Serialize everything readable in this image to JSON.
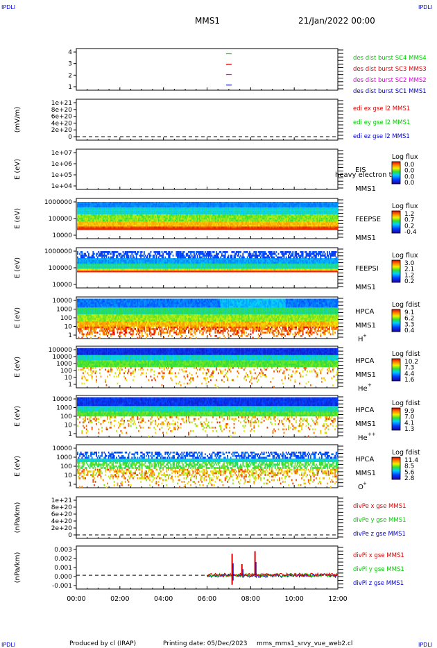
{
  "header": {
    "corner_left_top": "IPDLI",
    "corner_right_top": "IPDLI",
    "corner_left_bottom": "IPDLI",
    "corner_right_bottom": "IPDLI",
    "mission": "MMS1",
    "date_time": "21/Jan/2022 00:00"
  },
  "footer": {
    "produced_by": "Produced by  cl (IRAP)",
    "printing_date": "Printing date: 05/Dec/2023",
    "filename": "mms_mms1_srvy_vue_web2.cl"
  },
  "colors": {
    "red": "#e00000",
    "magenta": "#e000e0",
    "green": "#00cc00",
    "blue": "#0000cc"
  },
  "chart_data": [
    {
      "id": "burst",
      "type": "scatter",
      "yticks": [
        "1",
        "2",
        "3",
        "4"
      ],
      "ylim": [
        0.5,
        4.5
      ],
      "series": [
        {
          "name": "des dist burst SC1 MMS1",
          "color": "#0000cc",
          "y": 1,
          "x": 7.0
        },
        {
          "name": "des dist burst SC2 MMS2",
          "color": "#e000e0",
          "y": 2,
          "x": 7.0
        },
        {
          "name": "des dist burst SC3 MMS3",
          "color": "#e00000",
          "y": 3,
          "x": 7.0
        },
        {
          "name": "des dist burst SC4 MMS4",
          "color": "#00cc00",
          "y": 4,
          "x": 7.0
        }
      ]
    },
    {
      "id": "efield",
      "type": "line",
      "ylabel": "(mV/m)",
      "yticks": [
        "0",
        "2e+20",
        "4e+20",
        "6e+20",
        "8e+20",
        "1e+21"
      ],
      "series": [
        {
          "name": "edi ex gse l2 MMS1",
          "color": "#e00000"
        },
        {
          "name": "edi ey gse l2 MMS1",
          "color": "#00cc00"
        },
        {
          "name": "edi ez gse l2 MMS1",
          "color": "#0000cc"
        }
      ]
    },
    {
      "id": "eis",
      "type": "heatmap",
      "ylabel": "E (eV)",
      "yticks": [
        "1e+04",
        "1e+05",
        "1e+06",
        "1e+07"
      ],
      "name": "EIS",
      "sc": "MMS1",
      "overlay": "heavy electron to",
      "cbar_title": "Log flux",
      "cbar_ticks": [
        "0.0",
        "0.0",
        "0.0",
        "0.0"
      ]
    },
    {
      "id": "feepse",
      "type": "heatmap",
      "ylabel": "E (eV)",
      "yticks": [
        "10000",
        "100000",
        "1000000"
      ],
      "name": "FEEPSE",
      "sc": "MMS1",
      "cbar_title": "Log flux",
      "cbar_ticks": [
        "1.2",
        "0.7",
        "0.2",
        "-0.4"
      ]
    },
    {
      "id": "feepsi",
      "type": "heatmap",
      "ylabel": "E (eV)",
      "yticks": [
        "10000",
        "100000",
        "1000000"
      ],
      "name": "FEEPSI",
      "sc": "MMS1",
      "cbar_title": "Log flux",
      "cbar_ticks": [
        "3.0",
        "2.1",
        "1.2",
        "0.2"
      ]
    },
    {
      "id": "hpca_h",
      "type": "heatmap",
      "ylabel": "E (eV)",
      "yticks": [
        "1",
        "10",
        "100",
        "1000",
        "10000"
      ],
      "name": "HPCA",
      "sc": "MMS1",
      "species": "H",
      "charge": "+",
      "cbar_title": "Log fdist",
      "cbar_ticks": [
        "9.1",
        "6.2",
        "3.3",
        "0.4"
      ]
    },
    {
      "id": "hpca_he",
      "type": "heatmap",
      "ylabel": "E (eV)",
      "yticks": [
        "1",
        "10",
        "100",
        "1000",
        "10000",
        "100000"
      ],
      "name": "HPCA",
      "sc": "MMS1",
      "species": "He",
      "charge": "+",
      "cbar_title": "Log fdist",
      "cbar_ticks": [
        "10.2",
        "7.3",
        "4.4",
        "1.6"
      ]
    },
    {
      "id": "hpca_hepp",
      "type": "heatmap",
      "ylabel": "E (eV)",
      "yticks": [
        "1",
        "10",
        "100",
        "1000",
        "10000"
      ],
      "name": "HPCA",
      "sc": "MMS1",
      "species": "He",
      "charge": "++",
      "cbar_title": "Log fdist",
      "cbar_ticks": [
        "9.9",
        "7.0",
        "4.1",
        "1.3"
      ]
    },
    {
      "id": "hpca_o",
      "type": "heatmap",
      "ylabel": "E (eV)",
      "yticks": [
        "1",
        "10",
        "100",
        "1000",
        "10000"
      ],
      "name": "HPCA",
      "sc": "MMS1",
      "species": "O",
      "charge": "+",
      "cbar_title": "Log fdist",
      "cbar_ticks": [
        "11.4",
        "8.5",
        "5.6",
        "2.8"
      ]
    },
    {
      "id": "divpe",
      "type": "line",
      "ylabel": "(nPa/km)",
      "yticks": [
        "0",
        "2e+20",
        "4e+20",
        "6e+20",
        "8e+20",
        "1e+21"
      ],
      "series": [
        {
          "name": "divPe x gse MMS1",
          "color": "#e00000"
        },
        {
          "name": "divPe y gse MMS1",
          "color": "#00cc00"
        },
        {
          "name": "divPe z gse MMS1",
          "color": "#0000cc"
        }
      ]
    },
    {
      "id": "divpi",
      "type": "line",
      "ylabel": "(nPa/km)",
      "yticks": [
        "-0.001",
        "0.000",
        "0.001",
        "0.002",
        "0.003"
      ],
      "ylim": [
        -0.0016,
        0.0034
      ],
      "data_start_hour": 6.0,
      "spikes": [
        {
          "x": 7.15,
          "y": 0.0025
        },
        {
          "x": 7.6,
          "y": 0.0013
        },
        {
          "x": 8.2,
          "y": 0.0028
        },
        {
          "x": 7.15,
          "y": -0.0011
        }
      ],
      "series": [
        {
          "name": "divPi x gse MMS1",
          "color": "#e00000"
        },
        {
          "name": "divPi y gse MMS1",
          "color": "#00cc00"
        },
        {
          "name": "divPi z gse MMS1",
          "color": "#0000cc"
        }
      ]
    }
  ],
  "xaxis": {
    "ticks": [
      "00:00",
      "02:00",
      "04:00",
      "06:00",
      "08:00",
      "10:00",
      "12:00"
    ],
    "xlim": [
      0,
      12
    ]
  }
}
